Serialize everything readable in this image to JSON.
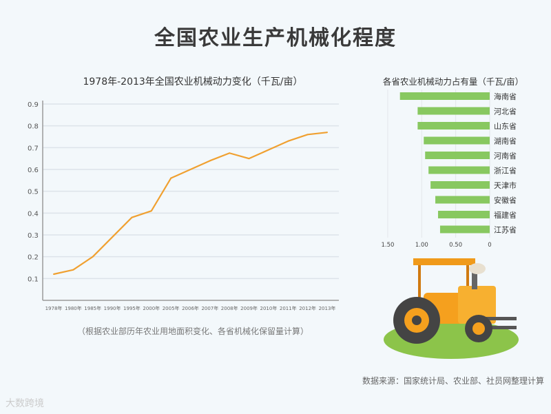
{
  "title": "全国农业生产机械化程度",
  "note": "（根据农业部历年农业用地面积变化、各省机械化保留量计算）",
  "source": "数据来源：国家统计局、农业部、社员网整理计算",
  "watermark": "大数跨境",
  "chart_data": [
    {
      "type": "line",
      "title": "1978年-2013年全国农业机械动力变化（千瓦/亩）",
      "categories": [
        "1978年",
        "1980年",
        "1985年",
        "1990年",
        "1995年",
        "2000年",
        "2005年",
        "2006年",
        "2007年",
        "2008年",
        "2009年",
        "2010年",
        "2011年",
        "2012年",
        "2013年"
      ],
      "values": [
        0.12,
        0.14,
        0.2,
        0.29,
        0.38,
        0.41,
        0.56,
        0.6,
        0.64,
        0.675,
        0.65,
        0.69,
        0.73,
        0.76,
        0.77
      ],
      "yticks": [
        "0.1",
        "0.2",
        "0.3",
        "0.4",
        "0.5",
        "0.6",
        "0.7",
        "0.8",
        "0.9"
      ],
      "ylim": [
        0,
        0.9
      ],
      "grid": true,
      "color": "#f0a030"
    },
    {
      "type": "bar",
      "orientation": "horizontal-reversed",
      "title": "各省农业机械动力占有量（千瓦/亩）",
      "categories": [
        "海南省",
        "河北省",
        "山东省",
        "湖南省",
        "河南省",
        "浙江省",
        "天津市",
        "安徽省",
        "福建省",
        "江苏省"
      ],
      "values": [
        1.32,
        1.06,
        1.06,
        0.97,
        0.95,
        0.9,
        0.87,
        0.8,
        0.76,
        0.73
      ],
      "xticks": [
        "1.50",
        "1.00",
        "0.50",
        "0"
      ],
      "xlim": [
        0,
        1.5
      ],
      "color": "#88c860"
    }
  ]
}
